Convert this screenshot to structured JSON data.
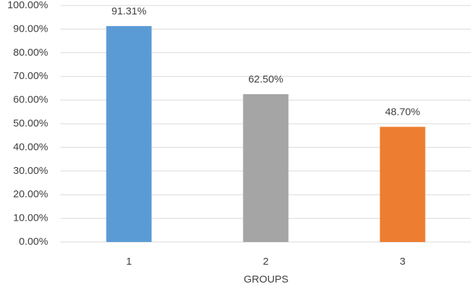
{
  "chart_data": {
    "type": "bar",
    "x_label": "GROUPS",
    "categories": [
      "1",
      "2",
      "3"
    ],
    "values": [
      91.31,
      62.5,
      48.7
    ],
    "value_labels": [
      "91.31%",
      "62.50%",
      "48.70%"
    ],
    "colors": [
      "#5b9bd5",
      "#a5a5a5",
      "#ed7d31"
    ],
    "ylim": [
      0,
      100
    ],
    "yticks": [
      {
        "value": 0,
        "label": "0.00%"
      },
      {
        "value": 10,
        "label": "10.00%"
      },
      {
        "value": 20,
        "label": "20.00%"
      },
      {
        "value": 30,
        "label": "30.00%"
      },
      {
        "value": 40,
        "label": "40.00%"
      },
      {
        "value": 50,
        "label": "50.00%"
      },
      {
        "value": 60,
        "label": "60.00%"
      },
      {
        "value": 70,
        "label": "70.00%"
      },
      {
        "value": 80,
        "label": "80.00%"
      },
      {
        "value": 90,
        "label": "90.00%"
      },
      {
        "value": 100,
        "label": "100.00%"
      }
    ],
    "grid": true
  }
}
